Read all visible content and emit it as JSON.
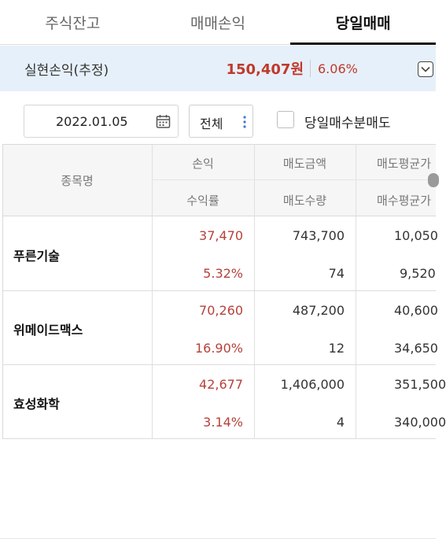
{
  "tabs": [
    {
      "label": "주식잔고",
      "active": false
    },
    {
      "label": "매매손익",
      "active": false
    },
    {
      "label": "당일매매",
      "active": true
    }
  ],
  "summary": {
    "label": "실현손익(추정)",
    "amount": "150,407원",
    "rate": "6.06%",
    "toggle_icon": "chevron-down-icon"
  },
  "filters": {
    "date": "2022.01.05",
    "date_icon": "calendar-icon",
    "market_select": "전체",
    "market_icon": "vertical-dots-icon",
    "checkbox_label": "당일매수분매도",
    "checkbox_checked": false
  },
  "table": {
    "headers": {
      "name": "종목명",
      "profit": "손익",
      "rate": "수익률",
      "sell_amount": "매도금액",
      "sell_qty": "매도수량",
      "sell_avg": "매도평균가",
      "buy_avg": "매수평균가"
    },
    "rows": [
      {
        "name": "푸른기술",
        "profit": "37,470",
        "rate": "5.32%",
        "sell_amount": "743,700",
        "sell_qty": "74",
        "sell_avg": "10,050",
        "buy_avg": "9,520"
      },
      {
        "name": "위메이드맥스",
        "profit": "70,260",
        "rate": "16.90%",
        "sell_amount": "487,200",
        "sell_qty": "12",
        "sell_avg": "40,600",
        "buy_avg": "34,650"
      },
      {
        "name": "효성화학",
        "profit": "42,677",
        "rate": "3.14%",
        "sell_amount": "1,406,000",
        "sell_qty": "4",
        "sell_avg": "351,500",
        "buy_avg": "340,000"
      }
    ]
  },
  "colors": {
    "profit_red": "#b5413a",
    "summary_bg": "#e6f0fa",
    "header_bg": "#f6f6f6"
  }
}
